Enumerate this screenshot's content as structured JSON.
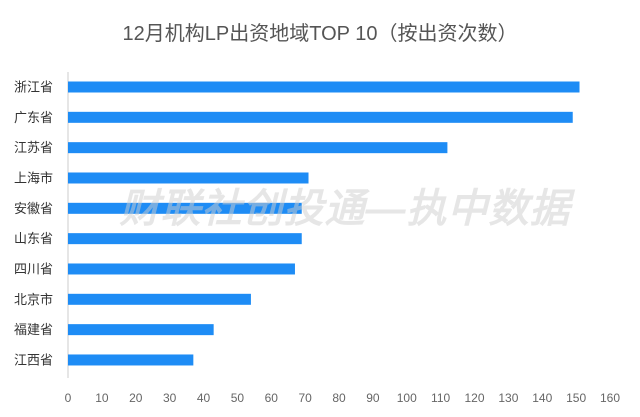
{
  "chart_data": {
    "type": "bar",
    "orientation": "horizontal",
    "title": "12月机构LP出资地域TOP 10（按出资次数）",
    "categories": [
      "浙江省",
      "广东省",
      "江苏省",
      "上海市",
      "安徽省",
      "山东省",
      "四川省",
      "北京市",
      "福建省",
      "江西省"
    ],
    "values": [
      151,
      149,
      112,
      71,
      69,
      69,
      67,
      54,
      43,
      37
    ],
    "xlim": [
      0,
      160
    ],
    "xticks": [
      "0",
      "10",
      "20",
      "30",
      "40",
      "50",
      "60",
      "70",
      "80",
      "90",
      "100",
      "110",
      "120",
      "130",
      "140",
      "150",
      "160"
    ],
    "xlabel": "",
    "ylabel": "",
    "grid": false,
    "legend": "none",
    "bar_color": "#1e8cf5"
  },
  "watermark": "财联社创投通—执中数据"
}
